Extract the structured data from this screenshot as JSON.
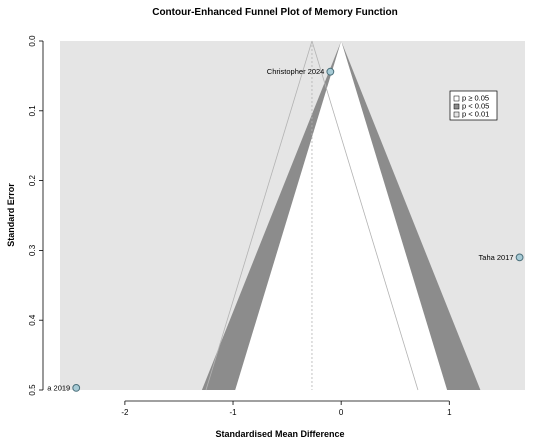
{
  "chart_data": {
    "type": "scatter",
    "title": "Contour-Enhanced Funnel Plot of Memory Function",
    "xlabel": "Standardised Mean Difference",
    "ylabel": "Standard Error",
    "xlim": [
      -2.6,
      1.7
    ],
    "ylim": [
      0,
      0.5
    ],
    "y_reversed": true,
    "x_ticks": [
      "-2",
      "-1",
      "0",
      "1"
    ],
    "x_tick_values": [
      -2,
      -1,
      0,
      1
    ],
    "y_ticks": [
      "0.0",
      "0.1",
      "0.2",
      "0.3",
      "0.4",
      "0.5"
    ],
    "y_tick_values": [
      0,
      0.1,
      0.2,
      0.3,
      0.4,
      0.5
    ],
    "pooled_estimate": -0.27,
    "points": [
      {
        "label": "Christopher 2024",
        "x": -0.1,
        "se": 0.044
      },
      {
        "label": "Taha 2017",
        "x": 1.65,
        "se": 0.31
      },
      {
        "label": "a 2019",
        "x": -2.45,
        "se": 0.497
      }
    ],
    "legend": {
      "position": "top-right",
      "entries": [
        {
          "label": "p ≥ 0.05",
          "color": "#ffffff"
        },
        {
          "label": "p < 0.05",
          "color": "#8c8c8c"
        },
        {
          "label": "p < 0.01",
          "color": "#e5e5e5"
        }
      ]
    },
    "colors": {
      "background": "#e5e5e5",
      "contour_05": "#8c8c8c",
      "contour_ns": "#ffffff",
      "point_fill": "#a7cbd6",
      "point_stroke": "#4a6f7a",
      "funnel_line": "#b3b3b3"
    }
  }
}
